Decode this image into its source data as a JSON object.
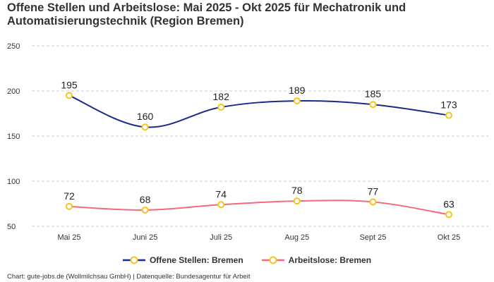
{
  "title": "Offene Stellen und Arbeitslose: Mai 2025 - Okt 2025 für Mechatronik und Automatisierungstechnik (Region Bremen)",
  "footer": "Chart: gute-jobs.de (Wollmilchsau GmbH) | Datenquelle: Bundesagentur für Arbeit",
  "chart_data": {
    "type": "line",
    "categories": [
      "Mai 25",
      "Juni 25",
      "Juli 25",
      "Aug 25",
      "Sept 25",
      "Okt 25"
    ],
    "ylim": [
      50,
      250
    ],
    "yticks": [
      50,
      100,
      150,
      200,
      250
    ],
    "grid": true,
    "legend_position": "bottom",
    "marker_color": "#f5c518",
    "series": [
      {
        "name": "Offene Stellen: Bremen",
        "color": "#1a2a8c",
        "values": [
          195,
          160,
          182,
          189,
          185,
          173
        ]
      },
      {
        "name": "Arbeitslose: Bremen",
        "color": "#f7677f",
        "values": [
          72,
          68,
          74,
          78,
          77,
          63
        ]
      }
    ]
  }
}
